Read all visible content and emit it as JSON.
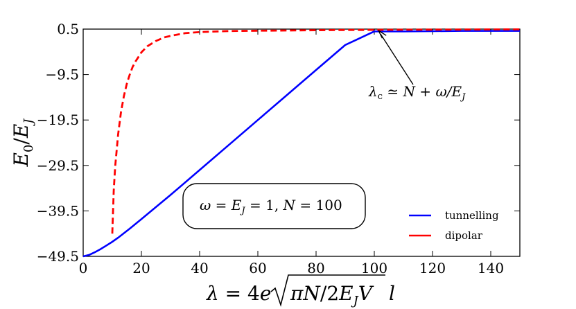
{
  "chart_data": {
    "type": "line",
    "xlabel": "λ = 4e√(πN/2E_J V) l",
    "ylabel": "E₀/E_J",
    "xlim": [
      0,
      150
    ],
    "ylim": [
      -49.5,
      0.5
    ],
    "xticks": [
      0,
      20,
      40,
      60,
      80,
      100,
      120,
      140
    ],
    "yticks": [
      0.5,
      -9.5,
      -19.5,
      -29.5,
      -39.5,
      -49.5
    ],
    "xtick_labels": [
      "0",
      "20",
      "40",
      "60",
      "80",
      "100",
      "120",
      "140"
    ],
    "ytick_labels": [
      "0.5",
      "−9.5",
      "−19.5",
      "−29.5",
      "−39.5",
      "−49.5"
    ],
    "grid": false,
    "legend_position": "lower-right",
    "series": [
      {
        "name": "tunnelling",
        "color": "#0000ff",
        "style": "solid",
        "x": [
          0,
          2,
          4,
          6,
          8,
          10,
          12,
          16,
          20,
          30,
          40,
          50,
          60,
          70,
          80,
          90,
          100,
          110,
          120,
          130,
          140,
          150
        ],
        "y": [
          -49.5,
          -49.2,
          -48.6,
          -47.9,
          -47.1,
          -46.3,
          -45.4,
          -43.4,
          -41.3,
          -36.0,
          -30.5,
          -25.0,
          -19.5,
          -14.0,
          -8.5,
          -3.0,
          0.0,
          0.0,
          0.05,
          0.1,
          0.1,
          0.1
        ]
      },
      {
        "name": "dipolar",
        "color": "#ff0000",
        "style": "dashed",
        "x": [
          10,
          10.5,
          11,
          12,
          13,
          14,
          15,
          16,
          17,
          18,
          20,
          22,
          25,
          28,
          30,
          35,
          40,
          50,
          60,
          70,
          80,
          90,
          100,
          110,
          120,
          130,
          140,
          150
        ],
        "y": [
          -44.5,
          -35.0,
          -29.7,
          -22.7,
          -17.7,
          -14.2,
          -11.5,
          -9.5,
          -7.8,
          -6.6,
          -4.6,
          -3.3,
          -2.1,
          -1.3,
          -1.0,
          -0.4,
          -0.15,
          0.08,
          0.15,
          0.2,
          0.26,
          0.3,
          0.33,
          0.36,
          0.38,
          0.4,
          0.42,
          0.44
        ]
      }
    ],
    "annotations": [
      {
        "text": "λ_c ≃ N + ω/E_J",
        "arrow_to": [
          100,
          0.5
        ]
      },
      {
        "text": "ω = E_J = 1, N = 100",
        "boxed": true
      }
    ]
  },
  "legend": {
    "tunnelling_label": "tunnelling",
    "dipolar_label": "dipolar"
  }
}
